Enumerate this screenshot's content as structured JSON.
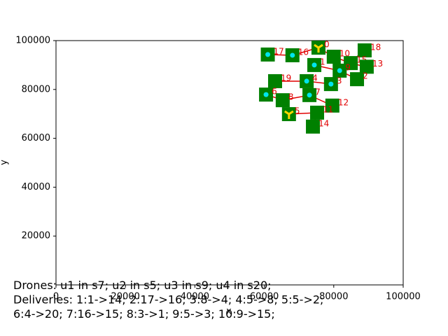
{
  "chart_data": {
    "type": "scatter",
    "xlabel": "x",
    "ylabel": "y",
    "xlim": [
      0,
      100000
    ],
    "ylim": [
      0,
      100000
    ],
    "xticks": [
      0,
      20000,
      40000,
      60000,
      80000,
      100000
    ],
    "yticks": [
      20000,
      40000,
      60000,
      80000,
      100000
    ],
    "series": [
      {
        "color": "#008000",
        "x": [
          61000,
          68100,
          75600,
          80000,
          88900,
          84900,
          89500,
          74400,
          81700,
          86700,
          63100,
          72200,
          79200,
          60500,
          65300,
          73000,
          79600,
          67100,
          75200,
          74000
        ],
        "y": [
          94300,
          94000,
          97100,
          93400,
          96000,
          90800,
          89300,
          90000,
          87700,
          84200,
          83400,
          83400,
          82200,
          77900,
          75600,
          77700,
          73400,
          69900,
          70500,
          64800
        ],
        "labels": [
          "17",
          "16",
          "0",
          "10",
          "18",
          "15",
          "13",
          "1",
          "9",
          "2",
          "19",
          "4",
          "3",
          "6",
          "8",
          "7",
          "12",
          "5",
          "11",
          "14"
        ]
      },
      {
        "color": "#00e5ee",
        "x": [
          61000,
          68100,
          72200,
          79200,
          60500,
          73000,
          74400,
          81700
        ],
        "y": [
          94300,
          94000,
          83400,
          82200,
          77900,
          77700,
          90000,
          87700
        ]
      },
      {
        "color": "#ffd700",
        "x": [
          75600,
          67100
        ],
        "y": [
          97100,
          69900
        ]
      }
    ],
    "annotations": [
      "Drones: u1 in s7; u2 in s5; u3 in s9; u4 in s20;",
      "Deliveries: 1:1->14; 2:17->16; 3:8->4; 4:5->8; 5:5->2;",
      "6:4->20; 7:16->15; 8:3->1; 9:5->3; 10:9->15;"
    ]
  }
}
